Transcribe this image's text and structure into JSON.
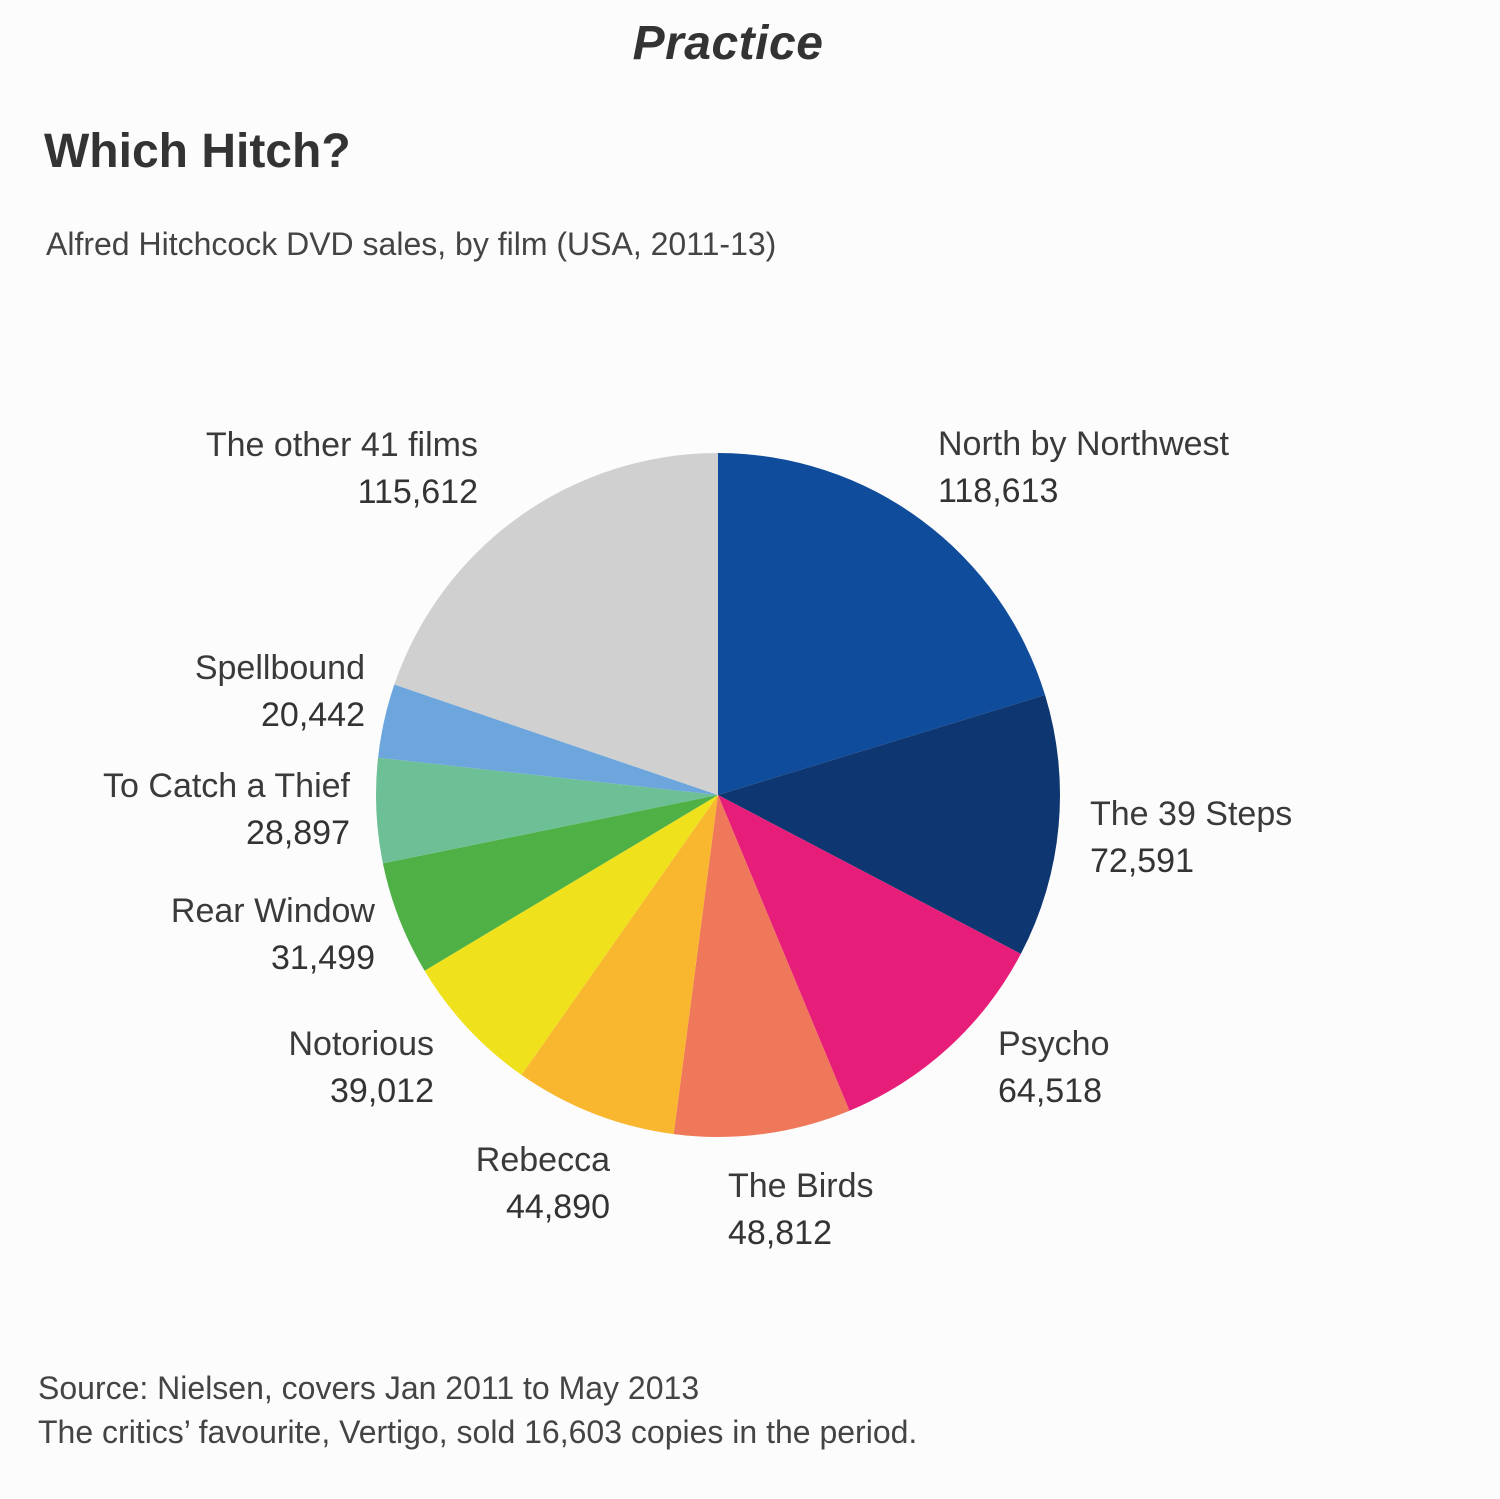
{
  "header": {
    "banner": "Practice",
    "title": "Which Hitch?",
    "subtitle": "Alfred Hitchcock DVD sales, by film (USA, 2011-13)"
  },
  "footer": {
    "source": "Source: Nielsen, covers Jan 2011 to May 2013",
    "note": "The critics’ favourite, Vertigo, sold 16,603 copies in the period."
  },
  "chart_data": {
    "type": "pie",
    "title": "Which Hitch?",
    "subtitle": "Alfred Hitchcock DVD sales, by film (USA, 2011-13)",
    "legend": "none",
    "start_angle": "12 o'clock",
    "direction": "clockwise",
    "slices": [
      {
        "label": "North by Northwest",
        "value": 118613,
        "value_label": "118,613",
        "color": "#0f4c9c"
      },
      {
        "label": "The 39 Steps",
        "value": 72591,
        "value_label": "72,591",
        "color": "#0e3670"
      },
      {
        "label": "Psycho",
        "value": 64518,
        "value_label": "64,518",
        "color": "#e71e79"
      },
      {
        "label": "The Birds",
        "value": 48812,
        "value_label": "48,812",
        "color": "#ef785a"
      },
      {
        "label": "Rebecca",
        "value": 44890,
        "value_label": "44,890",
        "color": "#f8b72e"
      },
      {
        "label": "Notorious",
        "value": 39012,
        "value_label": "39,012",
        "color": "#efe21c"
      },
      {
        "label": "Rear Window",
        "value": 31499,
        "value_label": "31,499",
        "color": "#4fb045"
      },
      {
        "label": "To Catch a Thief",
        "value": 28897,
        "value_label": "28,897",
        "color": "#6dbf96"
      },
      {
        "label": "Spellbound",
        "value": 20442,
        "value_label": "20,442",
        "color": "#6ca6dd"
      },
      {
        "label": "The other 41 films",
        "value": 115612,
        "value_label": "115,612",
        "color": "#d0d0d0"
      }
    ]
  }
}
